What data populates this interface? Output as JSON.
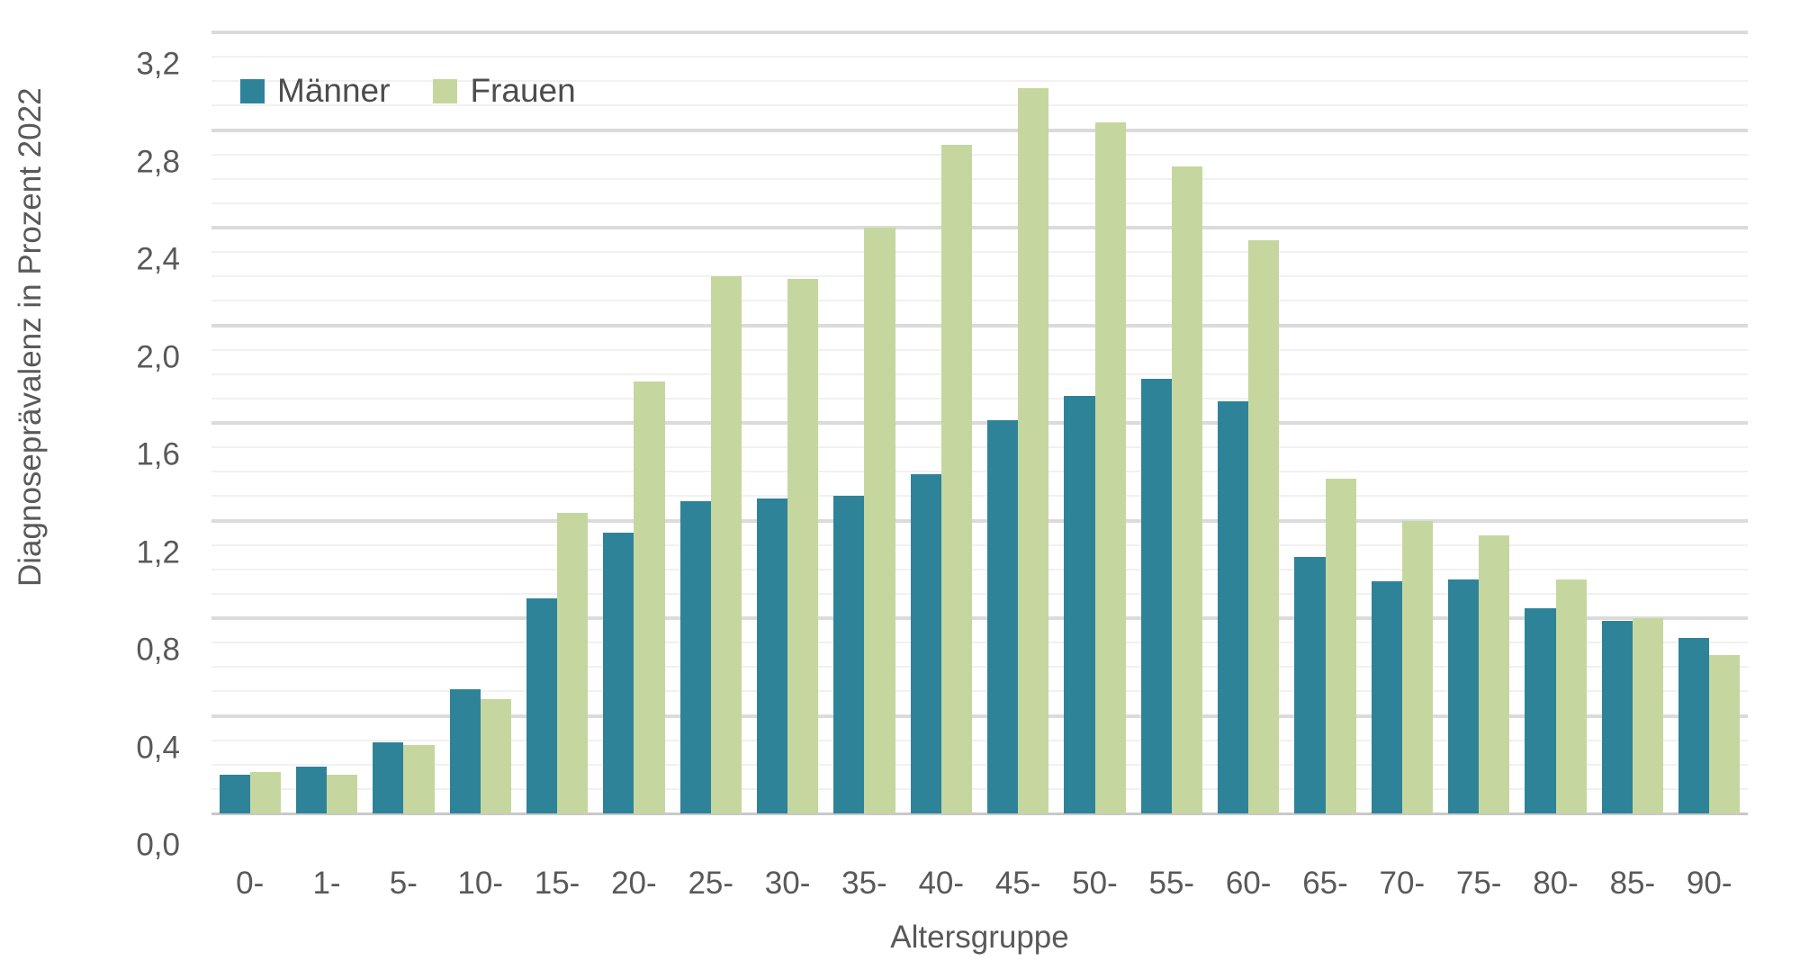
{
  "chart_data": {
    "type": "bar",
    "title": "",
    "xlabel": "Altersgruppe",
    "ylabel": "Diagnoseprävalenz in Prozent 2022",
    "ylim": [
      0,
      3.2
    ],
    "y_major_step": 0.4,
    "y_minor_step": 0.1,
    "grid": "on",
    "legend_position": "top-left-inside",
    "decimal_separator": ",",
    "y_ticks": [
      {
        "value": 0.0,
        "label": "0,0"
      },
      {
        "value": 0.4,
        "label": "0,4"
      },
      {
        "value": 0.8,
        "label": "0,8"
      },
      {
        "value": 1.2,
        "label": "1,2"
      },
      {
        "value": 1.6,
        "label": "1,6"
      },
      {
        "value": 2.0,
        "label": "2,0"
      },
      {
        "value": 2.4,
        "label": "2,4"
      },
      {
        "value": 2.8,
        "label": "2,8"
      },
      {
        "value": 3.2,
        "label": "3,2"
      }
    ],
    "categories": [
      "0-",
      "1-",
      "5-",
      "10-",
      "15-",
      "20-",
      "25-",
      "30-",
      "35-",
      "40-",
      "45-",
      "50-",
      "55-",
      "60-",
      "65-",
      "70-",
      "75-",
      "80-",
      "85-",
      "90-"
    ],
    "series": [
      {
        "name": "Männer",
        "color": "#2e8399",
        "values": [
          0.16,
          0.19,
          0.29,
          0.51,
          0.88,
          1.15,
          1.28,
          1.29,
          1.3,
          1.39,
          1.61,
          1.71,
          1.78,
          1.69,
          1.05,
          0.95,
          0.96,
          0.84,
          0.79,
          0.72
        ]
      },
      {
        "name": "Frauen",
        "color": "#c5d79e",
        "values": [
          0.17,
          0.16,
          0.28,
          0.47,
          1.23,
          1.77,
          2.2,
          2.19,
          2.4,
          2.74,
          2.97,
          2.83,
          2.65,
          2.35,
          1.37,
          1.2,
          1.14,
          0.96,
          0.8,
          0.65
        ]
      }
    ]
  },
  "colors": {
    "text": "#595959",
    "major_grid": "#dbdbdb",
    "minor_grid": "#f1f1f1",
    "axis_line": "#c9c9c9",
    "background": "#ffffff"
  }
}
